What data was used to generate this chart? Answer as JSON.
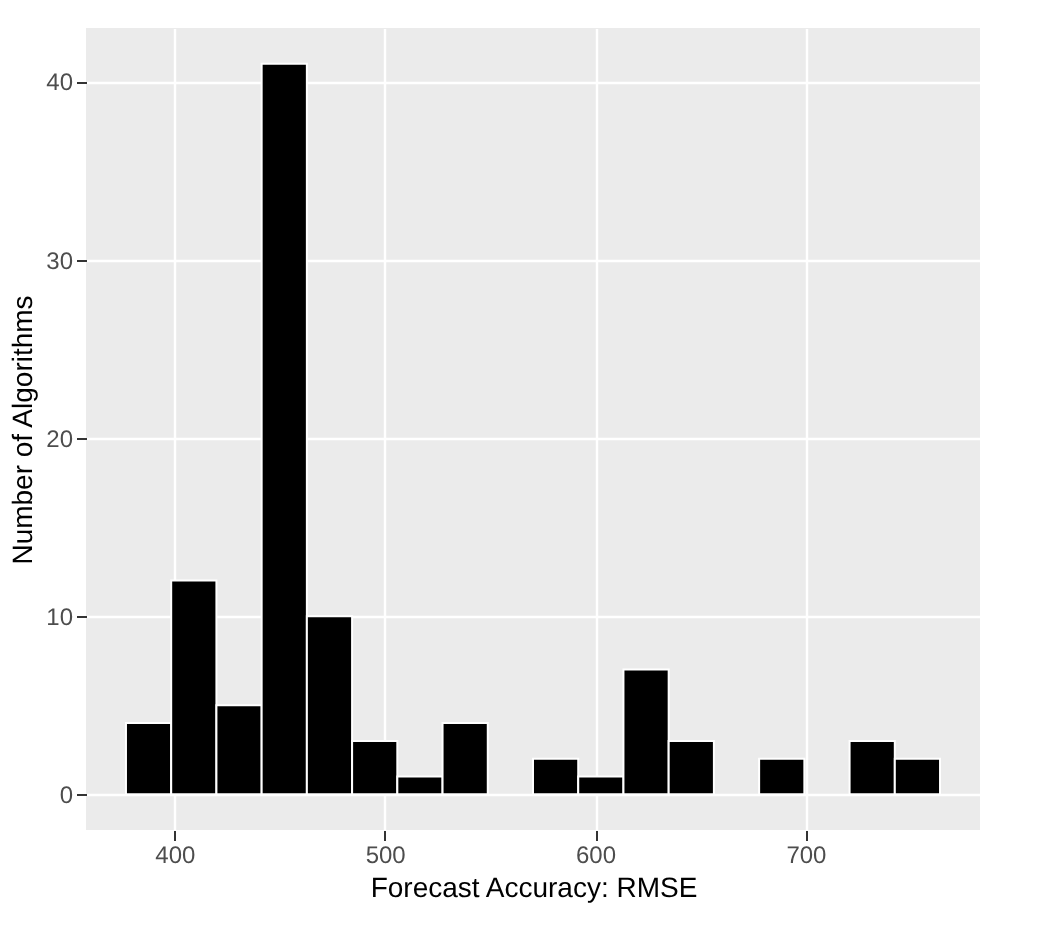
{
  "chart_data": {
    "type": "histogram",
    "xlabel": "Forecast Accuracy: RMSE",
    "ylabel": "Number of Algorithms",
    "bins": [
      377,
      398.5,
      420,
      441.5,
      463,
      484.5,
      506,
      527.5,
      549,
      570.5,
      592,
      613.5,
      635,
      656.5,
      678,
      699.5,
      721,
      742.5,
      764
    ],
    "values": [
      4,
      12,
      5,
      41,
      10,
      3,
      1,
      4,
      0,
      2,
      1,
      7,
      3,
      0,
      2,
      0,
      3,
      2
    ],
    "color": "#000000",
    "xlim": [
      358,
      783
    ],
    "xticks": [
      400,
      500,
      600,
      700
    ],
    "ylim": [
      -2,
      43
    ],
    "yticks": [
      0,
      10,
      20,
      30,
      40
    ],
    "grid": true
  }
}
